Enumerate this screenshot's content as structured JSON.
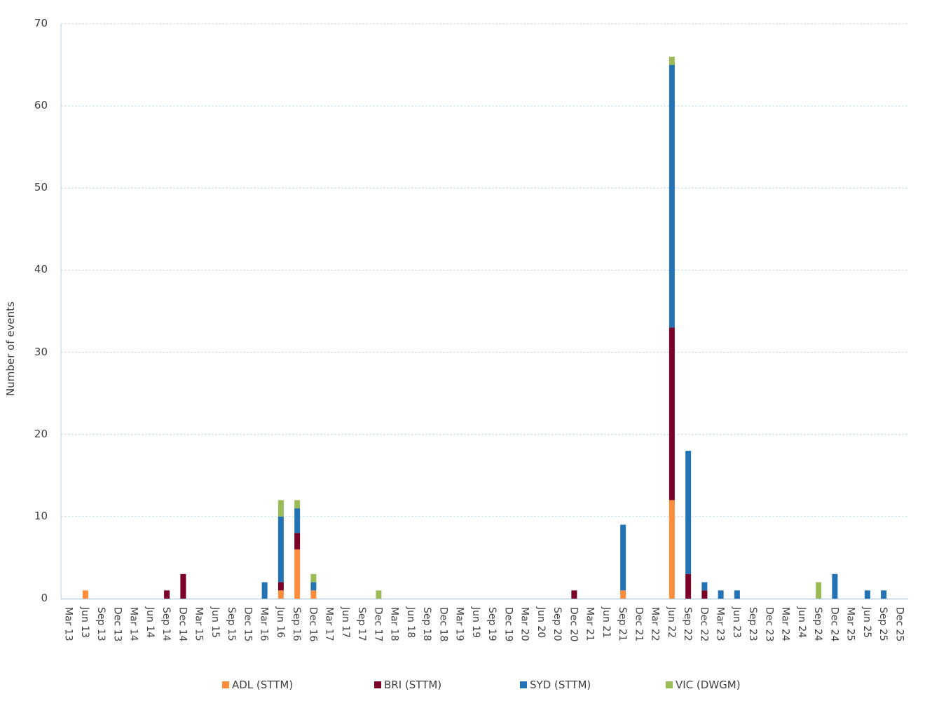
{
  "chart_data": {
    "type": "bar",
    "stacked": true,
    "title": "",
    "xlabel": "",
    "ylabel": "Number of events",
    "ylim": [
      0,
      70
    ],
    "yticks": [
      0,
      10,
      20,
      30,
      40,
      50,
      60,
      70
    ],
    "grid": true,
    "legend_position": "bottom",
    "categories": [
      "Mar 13",
      "Jun 13",
      "Sep 13",
      "Dec 13",
      "Mar 14",
      "Jun 14",
      "Sep 14",
      "Dec 14",
      "Mar 15",
      "Jun 15",
      "Sep 15",
      "Dec 15",
      "Mar 16",
      "Jun 16",
      "Sep 16",
      "Dec 16",
      "Mar 17",
      "Jun 17",
      "Sep 17",
      "Dec 17",
      "Mar 18",
      "Jun 18",
      "Sep 18",
      "Dec 18",
      "Mar 19",
      "Jun 19",
      "Sep 19",
      "Dec 19",
      "Mar 20",
      "Jun 20",
      "Sep 20",
      "Dec 20",
      "Mar 21",
      "Jun 21",
      "Sep 21",
      "Dec 21",
      "Mar 22",
      "Jun 22",
      "Sep 22",
      "Dec 22",
      "Mar 23",
      "Jun 23",
      "Sep 23",
      "Dec 23",
      "Mar 24",
      "Jun 24",
      "Sep 24",
      "Dec 24",
      "Mar 25",
      "Jun 25",
      "Sep 25",
      "Dec 25"
    ],
    "series": [
      {
        "name": "ADL (STTM)",
        "color": "#FF8C3A",
        "values": [
          0,
          1,
          0,
          0,
          0,
          0,
          0,
          0,
          0,
          0,
          0,
          0,
          0,
          1,
          6,
          1,
          0,
          0,
          0,
          0,
          0,
          0,
          0,
          0,
          0,
          0,
          0,
          0,
          0,
          0,
          0,
          0,
          0,
          0,
          1,
          0,
          0,
          12,
          0,
          0,
          0,
          0,
          0,
          0,
          0,
          0,
          0,
          0,
          0,
          0,
          0,
          0
        ]
      },
      {
        "name": "BRI (STTM)",
        "color": "#7B0028",
        "values": [
          0,
          0,
          0,
          0,
          0,
          0,
          1,
          3,
          0,
          0,
          0,
          0,
          0,
          1,
          2,
          0,
          0,
          0,
          0,
          0,
          0,
          0,
          0,
          0,
          0,
          0,
          0,
          0,
          0,
          0,
          0,
          1,
          0,
          0,
          0,
          0,
          0,
          21,
          3,
          1,
          0,
          0,
          0,
          0,
          0,
          0,
          0,
          0,
          0,
          0,
          0,
          0
        ]
      },
      {
        "name": "SYD (STTM)",
        "color": "#2272B4",
        "values": [
          0,
          0,
          0,
          0,
          0,
          0,
          0,
          0,
          0,
          0,
          0,
          0,
          2,
          8,
          3,
          1,
          0,
          0,
          0,
          0,
          0,
          0,
          0,
          0,
          0,
          0,
          0,
          0,
          0,
          0,
          0,
          0,
          0,
          0,
          8,
          0,
          0,
          32,
          15,
          1,
          1,
          1,
          0,
          0,
          0,
          0,
          0,
          3,
          0,
          1,
          1,
          0
        ]
      },
      {
        "name": "VIC (DWGM)",
        "color": "#9BBB59",
        "values": [
          0,
          0,
          0,
          0,
          0,
          0,
          0,
          0,
          0,
          0,
          0,
          0,
          0,
          2,
          1,
          1,
          0,
          0,
          0,
          1,
          0,
          0,
          0,
          0,
          0,
          0,
          0,
          0,
          0,
          0,
          0,
          0,
          0,
          0,
          0,
          0,
          0,
          1,
          0,
          0,
          0,
          0,
          0,
          0,
          0,
          0,
          2,
          0,
          0,
          0,
          0,
          0
        ]
      }
    ]
  },
  "style": {
    "gridline_color": "#C5D9EC",
    "axis_color": "#B8CFE6",
    "text_color": "#404040"
  }
}
